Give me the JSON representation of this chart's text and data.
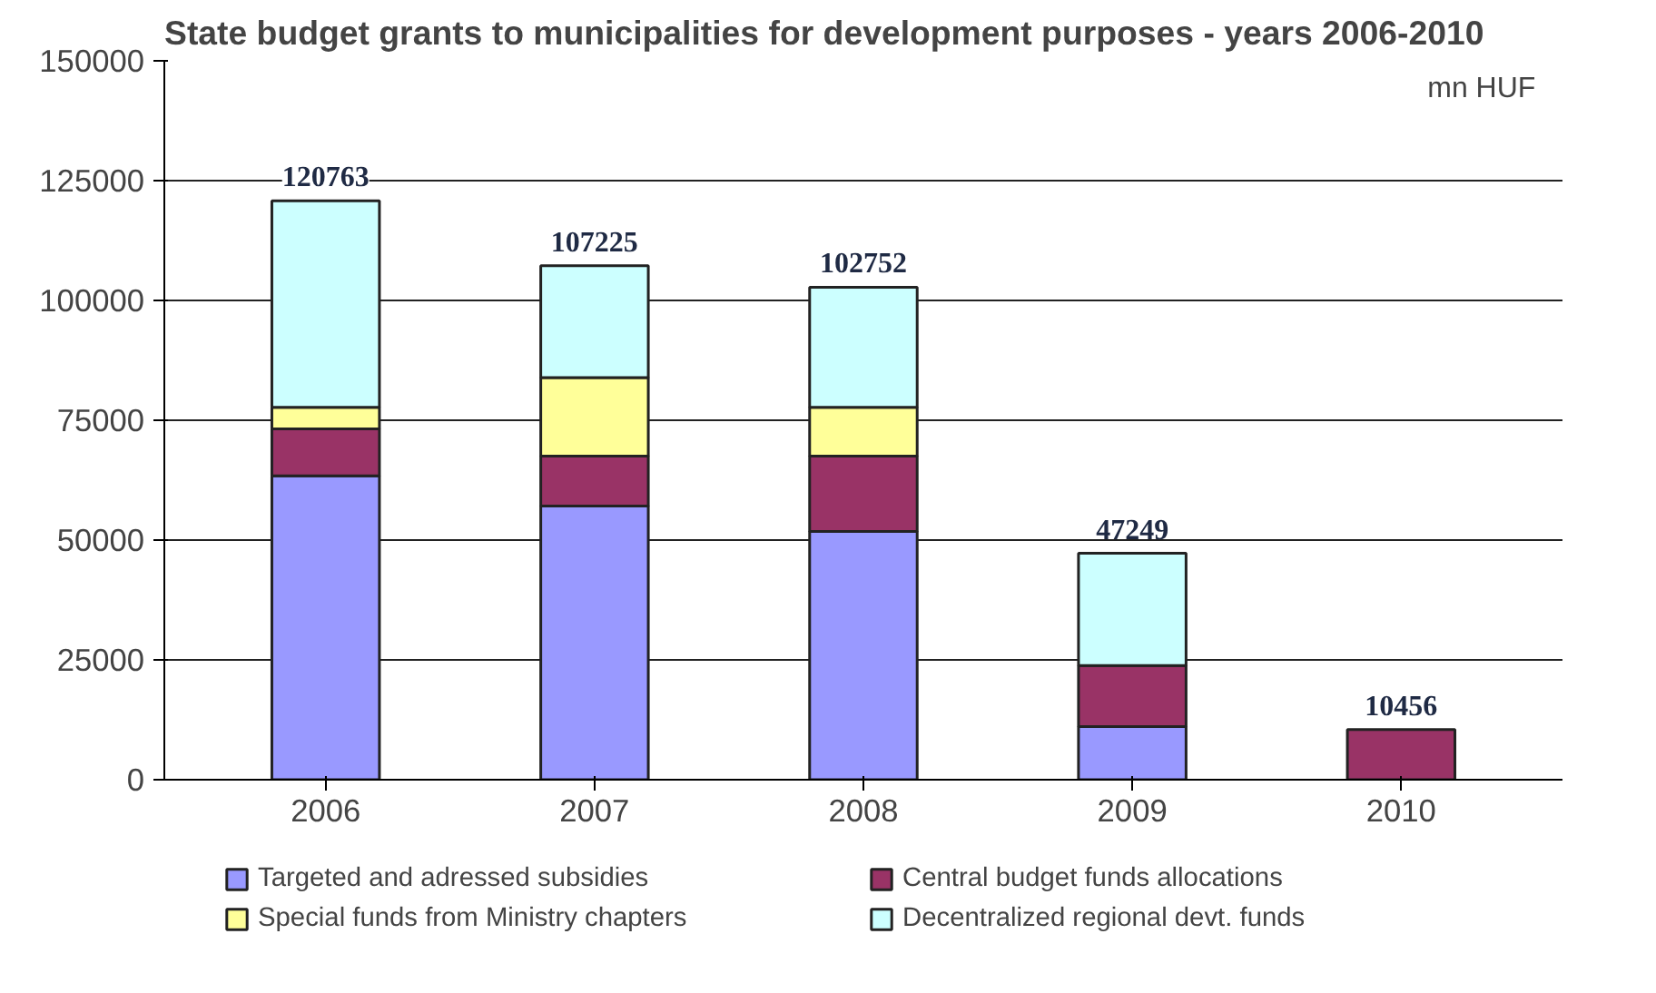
{
  "chart_data": {
    "type": "bar",
    "title": "State budget grants to municipalities for development purposes - years 2006-2010",
    "annotations": [
      "mn HUF"
    ],
    "categories": [
      "2006",
      "2007",
      "2008",
      "2009",
      "2010"
    ],
    "stacked": true,
    "series": [
      {
        "name": "Targeted and adressed subsidies",
        "color": "#9999ff",
        "values": [
          63400,
          57100,
          51800,
          11100,
          null
        ]
      },
      {
        "name": "Central budget funds allocations",
        "color": "#993366",
        "values": [
          9800,
          10400,
          15700,
          12700,
          10456
        ]
      },
      {
        "name": "Special funds from Ministry chapters",
        "color": "#ffff99",
        "values": [
          4500,
          16400,
          10200,
          null,
          null
        ]
      },
      {
        "name": "Decentralized regional devt. funds",
        "color": "#ccffff",
        "values": [
          43063,
          23325,
          25052,
          23449,
          null
        ]
      }
    ],
    "totals": [
      "120763",
      "107225",
      "102752",
      "47249",
      "10456"
    ],
    "ylim": [
      0,
      150000
    ],
    "yticks": [
      0,
      25000,
      50000,
      75000,
      100000,
      125000,
      150000
    ],
    "grid": "y",
    "legend": "bottom"
  }
}
